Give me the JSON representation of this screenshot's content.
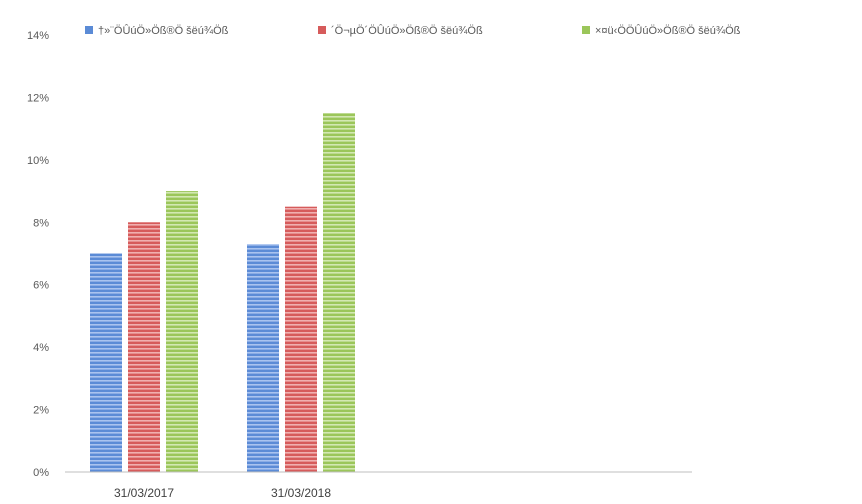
{
  "chart_data": {
    "type": "bar",
    "categories": [
      "31/03/2017",
      "31/03/2018"
    ],
    "series": [
      {
        "name": "†»¨ÖÛúÖ»Öß®Ö šëú¾Öß",
        "values": [
          0.07,
          0.073
        ],
        "color": "#5b8bd6",
        "stripe": "#a9c3ef"
      },
      {
        "name": "´Ö¬µÖ´ÖÛúÖ»Öß®Ö šëú¾Öß",
        "values": [
          0.08,
          0.085
        ],
        "color": "#d65b5b",
        "stripe": "#f0b0b0"
      },
      {
        "name": "×¤ü‹ÖÖÛúÖ»Öß®Ö šëú¾Öß",
        "values": [
          0.09,
          0.115
        ],
        "color": "#9bc65a",
        "stripe": "#d3e8b2"
      }
    ],
    "ylim": [
      0,
      0.14
    ],
    "yticks": [
      "0%",
      "2%",
      "4%",
      "6%",
      "8%",
      "10%",
      "12%",
      "14%"
    ],
    "ytick_values": [
      0,
      0.02,
      0.04,
      0.06,
      0.08,
      0.1,
      0.12,
      0.14
    ],
    "grid": false,
    "legend_position": "top"
  }
}
